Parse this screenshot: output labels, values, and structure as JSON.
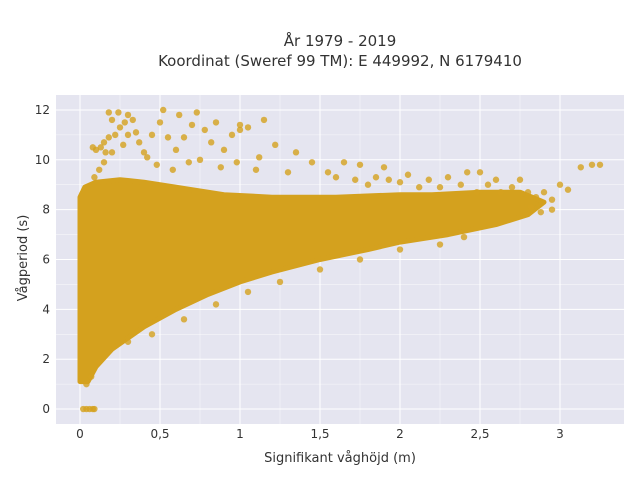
{
  "chart_data": {
    "type": "scatter",
    "title_line1": "År 1979 - 2019",
    "title_line2": "Koordinat (Sweref 99 TM): E 449992, N 6179410",
    "xlabel": "Signifikant våghöjd (m)",
    "ylabel": "Vågperiod (s)",
    "xlim": [
      -0.15,
      3.4
    ],
    "ylim": [
      -0.6,
      12.6
    ],
    "x_ticks": [
      0,
      0.5,
      1,
      1.5,
      2,
      2.5,
      3
    ],
    "x_tick_labels": [
      "0",
      "0,5",
      "1",
      "1,5",
      "2",
      "2,5",
      "3"
    ],
    "y_ticks": [
      0,
      2,
      4,
      6,
      8,
      10,
      12
    ],
    "y_tick_labels": [
      "0",
      "2",
      "4",
      "6",
      "8",
      "10",
      "12"
    ],
    "grid": true,
    "colors": {
      "points": "#d4a11e",
      "plot_bg": "#e5e5f0",
      "grid": "#ffffff",
      "text": "#333333"
    },
    "dense_region_polygon": [
      [
        0.0,
        1.1
      ],
      [
        0.05,
        1.1
      ],
      [
        0.1,
        1.7
      ],
      [
        0.2,
        2.4
      ],
      [
        0.4,
        3.3
      ],
      [
        0.6,
        4.0
      ],
      [
        0.8,
        4.6
      ],
      [
        1.0,
        5.1
      ],
      [
        1.2,
        5.5
      ],
      [
        1.5,
        6.0
      ],
      [
        1.8,
        6.4
      ],
      [
        2.0,
        6.7
      ],
      [
        2.3,
        7.0
      ],
      [
        2.6,
        7.4
      ],
      [
        2.8,
        7.8
      ],
      [
        2.9,
        8.3
      ],
      [
        2.75,
        8.7
      ],
      [
        2.5,
        8.7
      ],
      [
        2.2,
        8.6
      ],
      [
        2.0,
        8.6
      ],
      [
        1.6,
        8.5
      ],
      [
        1.2,
        8.5
      ],
      [
        0.9,
        8.6
      ],
      [
        0.6,
        8.9
      ],
      [
        0.4,
        9.1
      ],
      [
        0.25,
        9.2
      ],
      [
        0.1,
        9.1
      ],
      [
        0.03,
        8.9
      ],
      [
        0.0,
        8.5
      ]
    ],
    "zero_points": [
      {
        "x": 0.02,
        "y": 0
      },
      {
        "x": 0.04,
        "y": 0
      },
      {
        "x": 0.06,
        "y": 0
      },
      {
        "x": 0.08,
        "y": 0
      },
      {
        "x": 0.09,
        "y": 0
      }
    ],
    "points": [
      {
        "x": 0.04,
        "y": 1.0
      },
      {
        "x": 0.07,
        "y": 1.3
      },
      {
        "x": 0.12,
        "y": 1.9
      },
      {
        "x": 0.3,
        "y": 2.7
      },
      {
        "x": 0.09,
        "y": 9.3
      },
      {
        "x": 0.12,
        "y": 9.6
      },
      {
        "x": 0.15,
        "y": 9.9
      },
      {
        "x": 0.1,
        "y": 10.4
      },
      {
        "x": 0.13,
        "y": 10.5
      },
      {
        "x": 0.16,
        "y": 10.3
      },
      {
        "x": 0.2,
        "y": 10.3
      },
      {
        "x": 0.08,
        "y": 10.5
      },
      {
        "x": 0.15,
        "y": 10.7
      },
      {
        "x": 0.18,
        "y": 10.9
      },
      {
        "x": 0.22,
        "y": 11.0
      },
      {
        "x": 0.25,
        "y": 11.3
      },
      {
        "x": 0.2,
        "y": 11.6
      },
      {
        "x": 0.18,
        "y": 11.9
      },
      {
        "x": 0.24,
        "y": 11.9
      },
      {
        "x": 0.28,
        "y": 11.5
      },
      {
        "x": 0.3,
        "y": 11.8
      },
      {
        "x": 0.33,
        "y": 11.6
      },
      {
        "x": 0.35,
        "y": 11.1
      },
      {
        "x": 0.3,
        "y": 11.0
      },
      {
        "x": 0.27,
        "y": 10.6
      },
      {
        "x": 0.37,
        "y": 10.7
      },
      {
        "x": 0.4,
        "y": 10.3
      },
      {
        "x": 0.42,
        "y": 10.1
      },
      {
        "x": 0.45,
        "y": 11.0
      },
      {
        "x": 0.5,
        "y": 11.5
      },
      {
        "x": 0.52,
        "y": 12.0
      },
      {
        "x": 0.55,
        "y": 10.9
      },
      {
        "x": 0.6,
        "y": 10.4
      },
      {
        "x": 0.65,
        "y": 10.9
      },
      {
        "x": 0.7,
        "y": 11.4
      },
      {
        "x": 0.73,
        "y": 11.9
      },
      {
        "x": 0.78,
        "y": 11.2
      },
      {
        "x": 0.82,
        "y": 10.7
      },
      {
        "x": 0.85,
        "y": 11.5
      },
      {
        "x": 0.9,
        "y": 10.4
      },
      {
        "x": 0.95,
        "y": 11.0
      },
      {
        "x": 1.0,
        "y": 11.4
      },
      {
        "x": 1.05,
        "y": 11.3
      },
      {
        "x": 1.15,
        "y": 11.6
      },
      {
        "x": 0.48,
        "y": 9.8
      },
      {
        "x": 0.58,
        "y": 9.6
      },
      {
        "x": 0.68,
        "y": 9.9
      },
      {
        "x": 0.75,
        "y": 10.0
      },
      {
        "x": 0.88,
        "y": 9.7
      },
      {
        "x": 0.98,
        "y": 9.9
      },
      {
        "x": 1.1,
        "y": 9.6
      },
      {
        "x": 1.3,
        "y": 9.5
      },
      {
        "x": 1.35,
        "y": 10.3
      },
      {
        "x": 1.45,
        "y": 9.9
      },
      {
        "x": 1.55,
        "y": 9.5
      },
      {
        "x": 1.6,
        "y": 9.3
      },
      {
        "x": 1.65,
        "y": 9.9
      },
      {
        "x": 1.72,
        "y": 9.2
      },
      {
        "x": 1.75,
        "y": 9.8
      },
      {
        "x": 1.8,
        "y": 9.0
      },
      {
        "x": 1.85,
        "y": 9.3
      },
      {
        "x": 1.9,
        "y": 9.7
      },
      {
        "x": 1.93,
        "y": 9.2
      },
      {
        "x": 2.0,
        "y": 9.1
      },
      {
        "x": 2.05,
        "y": 9.4
      },
      {
        "x": 2.12,
        "y": 8.9
      },
      {
        "x": 2.18,
        "y": 9.2
      },
      {
        "x": 2.25,
        "y": 8.9
      },
      {
        "x": 2.3,
        "y": 9.3
      },
      {
        "x": 2.38,
        "y": 9.0
      },
      {
        "x": 2.42,
        "y": 9.5
      },
      {
        "x": 2.48,
        "y": 8.7
      },
      {
        "x": 2.5,
        "y": 9.5
      },
      {
        "x": 2.55,
        "y": 9.0
      },
      {
        "x": 2.6,
        "y": 9.2
      },
      {
        "x": 2.63,
        "y": 8.7
      },
      {
        "x": 2.7,
        "y": 8.9
      },
      {
        "x": 2.75,
        "y": 9.2
      },
      {
        "x": 2.8,
        "y": 8.7
      },
      {
        "x": 2.85,
        "y": 8.5
      },
      {
        "x": 2.9,
        "y": 8.7
      },
      {
        "x": 2.95,
        "y": 8.4
      },
      {
        "x": 3.0,
        "y": 9.0
      },
      {
        "x": 3.05,
        "y": 8.8
      },
      {
        "x": 3.13,
        "y": 9.7
      },
      {
        "x": 3.2,
        "y": 9.8
      },
      {
        "x": 3.25,
        "y": 9.8
      },
      {
        "x": 2.88,
        "y": 7.9
      },
      {
        "x": 2.82,
        "y": 8.1
      },
      {
        "x": 2.95,
        "y": 8.0
      },
      {
        "x": 2.25,
        "y": 6.6
      },
      {
        "x": 2.0,
        "y": 6.4
      },
      {
        "x": 1.75,
        "y": 6.0
      },
      {
        "x": 1.5,
        "y": 5.6
      },
      {
        "x": 1.25,
        "y": 5.1
      },
      {
        "x": 1.05,
        "y": 4.7
      },
      {
        "x": 0.85,
        "y": 4.2
      },
      {
        "x": 0.65,
        "y": 3.6
      },
      {
        "x": 0.45,
        "y": 3.0
      },
      {
        "x": 2.4,
        "y": 6.9
      },
      {
        "x": 1.0,
        "y": 11.2
      },
      {
        "x": 1.12,
        "y": 10.1
      },
      {
        "x": 1.22,
        "y": 10.6
      },
      {
        "x": 0.62,
        "y": 11.8
      }
    ]
  }
}
